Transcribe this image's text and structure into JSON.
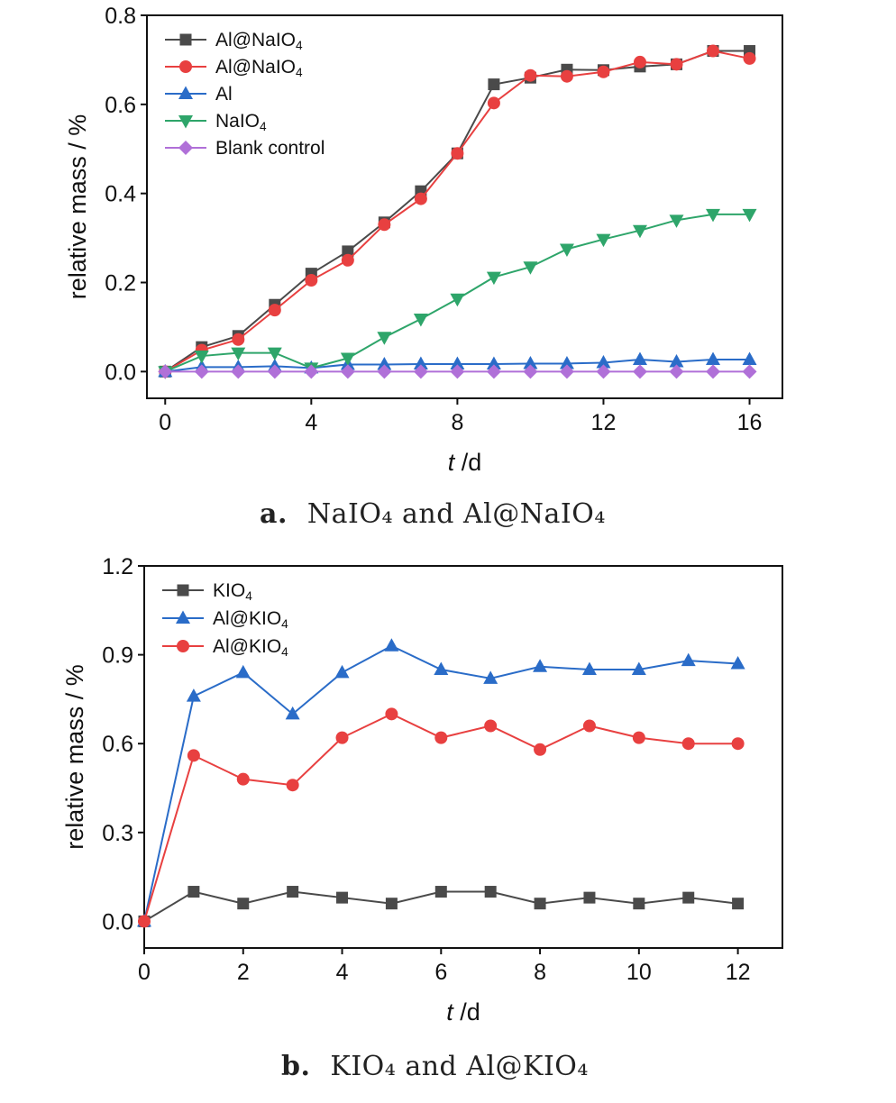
{
  "chart_data": [
    {
      "type": "line",
      "caption_letter": "a.",
      "caption_text": "NaIO₄ and Al@NaIO₄",
      "xlabel_italic": "t",
      "xlabel_unit": " /d",
      "ylabel": "relative mass / %",
      "xlim": [
        -0.5,
        16.9
      ],
      "ylim": [
        -0.06,
        0.8
      ],
      "xticks": [
        0,
        4,
        8,
        12,
        16
      ],
      "yticks": [
        0.0,
        0.2,
        0.4,
        0.6,
        0.8
      ],
      "ytick_format": 1,
      "legend_position": "top-left",
      "series": [
        {
          "name": "Al@NaIO₄",
          "color": "#4a4a4a",
          "marker": "square",
          "x": [
            0,
            1,
            2,
            3,
            4,
            5,
            6,
            7,
            8,
            9,
            10,
            11,
            12,
            13,
            14,
            15,
            16
          ],
          "y": [
            0,
            0.055,
            0.08,
            0.15,
            0.22,
            0.27,
            0.335,
            0.405,
            0.49,
            0.645,
            0.66,
            0.678,
            0.677,
            0.685,
            0.69,
            0.72,
            0.72
          ]
        },
        {
          "name": "Al@NaIO₄",
          "color": "#e84040",
          "marker": "circle",
          "x": [
            0,
            1,
            2,
            3,
            4,
            5,
            6,
            7,
            8,
            9,
            10,
            11,
            12,
            13,
            14,
            15,
            16
          ],
          "y": [
            0,
            0.048,
            0.072,
            0.138,
            0.205,
            0.25,
            0.33,
            0.388,
            0.49,
            0.603,
            0.665,
            0.663,
            0.673,
            0.695,
            0.69,
            0.72,
            0.703
          ]
        },
        {
          "name": "Al",
          "color": "#2a6cc8",
          "marker": "triangle-up",
          "x": [
            0,
            1,
            2,
            3,
            4,
            5,
            6,
            7,
            8,
            9,
            10,
            11,
            12,
            13,
            14,
            15,
            16
          ],
          "y": [
            0,
            0.01,
            0.01,
            0.012,
            0.008,
            0.016,
            0.016,
            0.017,
            0.017,
            0.017,
            0.018,
            0.018,
            0.02,
            0.027,
            0.022,
            0.027,
            0.027
          ]
        },
        {
          "name": "NaIO₄",
          "color": "#2ea56a",
          "marker": "triangle-down",
          "x": [
            0,
            1,
            2,
            3,
            4,
            5,
            6,
            7,
            8,
            9,
            10,
            11,
            12,
            13,
            14,
            15,
            16
          ],
          "y": [
            0,
            0.035,
            0.042,
            0.042,
            0.008,
            0.03,
            0.077,
            0.118,
            0.163,
            0.212,
            0.235,
            0.275,
            0.297,
            0.317,
            0.34,
            0.353,
            0.353
          ]
        },
        {
          "name": "Blank control",
          "color": "#b070d8",
          "marker": "diamond",
          "x": [
            0,
            1,
            2,
            3,
            4,
            5,
            6,
            7,
            8,
            9,
            10,
            11,
            12,
            13,
            14,
            15,
            16
          ],
          "y": [
            0,
            0,
            0,
            0,
            0,
            0,
            0,
            0,
            0,
            0,
            0,
            0,
            0,
            0,
            0,
            0,
            0
          ]
        }
      ]
    },
    {
      "type": "line",
      "caption_letter": "b.",
      "caption_text": "KIO₄ and Al@KIO₄",
      "xlabel_italic": "t",
      "xlabel_unit": " /d",
      "ylabel": "relative mass / %",
      "xlim": [
        0,
        12.9
      ],
      "ylim": [
        -0.09,
        1.2
      ],
      "xticks": [
        0,
        2,
        4,
        6,
        8,
        10,
        12
      ],
      "yticks": [
        0.0,
        0.3,
        0.6,
        0.9,
        1.2
      ],
      "ytick_format": 1,
      "legend_position": "top-left",
      "series": [
        {
          "name": "KIO₄",
          "color": "#4a4a4a",
          "marker": "square",
          "x": [
            0,
            1,
            2,
            3,
            4,
            5,
            6,
            7,
            8,
            9,
            10,
            11,
            12
          ],
          "y": [
            0,
            0.1,
            0.06,
            0.1,
            0.08,
            0.06,
            0.1,
            0.1,
            0.06,
            0.08,
            0.06,
            0.08,
            0.06
          ]
        },
        {
          "name": "Al@KIO₄",
          "color": "#2a6cc8",
          "marker": "triangle-up",
          "x": [
            0,
            1,
            2,
            3,
            4,
            5,
            6,
            7,
            8,
            9,
            10,
            11,
            12
          ],
          "y": [
            0,
            0.76,
            0.84,
            0.7,
            0.84,
            0.93,
            0.85,
            0.82,
            0.86,
            0.85,
            0.85,
            0.88,
            0.87
          ]
        },
        {
          "name": "Al@KIO₄",
          "color": "#e84040",
          "marker": "circle",
          "x": [
            0,
            1,
            2,
            3,
            4,
            5,
            6,
            7,
            8,
            9,
            10,
            11,
            12
          ],
          "y": [
            0,
            0.56,
            0.48,
            0.46,
            0.62,
            0.7,
            0.62,
            0.66,
            0.58,
            0.66,
            0.62,
            0.6,
            0.6
          ]
        }
      ]
    }
  ]
}
